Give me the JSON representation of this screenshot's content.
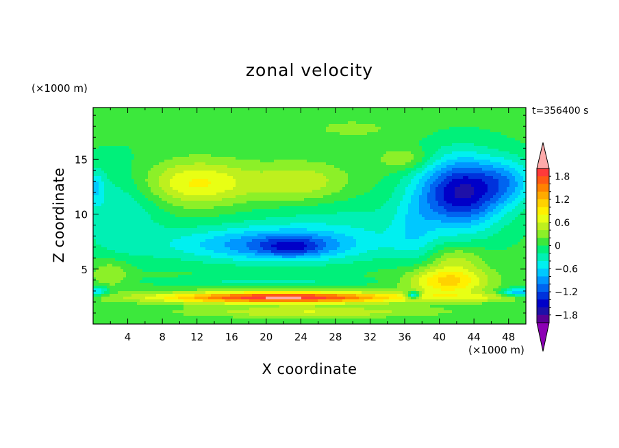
{
  "chart_data": {
    "type": "heatmap",
    "title": "zonal velocity",
    "xlabel": "X coordinate",
    "ylabel": "Z coordinate",
    "x_unit": "(×1000 m)",
    "z_unit": "(×1000 m)",
    "time_label": "t=356400 s",
    "xlim": [
      0,
      50
    ],
    "ylim": [
      0,
      19.7
    ],
    "x_ticks": [
      "4",
      "8",
      "12",
      "16",
      "20",
      "24",
      "28",
      "32",
      "36",
      "40",
      "44",
      "48"
    ],
    "y_ticks": [
      "5",
      "10",
      "15"
    ],
    "colorbar": {
      "labels": [
        "1.8",
        "1.2",
        "0.6",
        "0",
        "−0.6",
        "−1.2",
        "−1.8"
      ],
      "label_values": [
        1.8,
        1.2,
        0.6,
        0,
        -0.6,
        -1.2,
        -1.8
      ],
      "levels": [
        2.0,
        1.8,
        1.6,
        1.4,
        1.2,
        1.0,
        0.8,
        0.6,
        0.4,
        0.2,
        0,
        -0.2,
        -0.4,
        -0.6,
        -0.8,
        -1.0,
        -1.2,
        -1.4,
        -1.6,
        -1.8,
        -2.0
      ],
      "colors": [
        "#ff3a3a",
        "#ff5a14",
        "#ff8200",
        "#ffaa00",
        "#ffd200",
        "#fff000",
        "#e8ff14",
        "#bef01e",
        "#8cf028",
        "#3ce83c",
        "#00f07a",
        "#00f0b4",
        "#00f0f0",
        "#00c8ff",
        "#0096ff",
        "#0064f0",
        "#0032dc",
        "#0000c8",
        "#1e10a8",
        "#5a0096"
      ],
      "over_color": "#ffaaaa",
      "under_color": "#8c00b4"
    },
    "field_base": 0.05,
    "field_features": [
      {
        "x": 12,
        "z": 12.8,
        "sx": 6.5,
        "sz": 2.0,
        "amp": 0.8
      },
      {
        "x": 24,
        "z": 12.8,
        "sx": 5.5,
        "sz": 1.8,
        "amp": 0.55
      },
      {
        "x": 36,
        "z": 15.0,
        "sx": 3.0,
        "sz": 1.0,
        "amp": 0.4
      },
      {
        "x": 42.5,
        "z": 12.0,
        "sx": 5.0,
        "sz": 3.2,
        "amp": -1.65
      },
      {
        "x": 48,
        "z": 13.0,
        "sx": 3.5,
        "sz": 2.0,
        "amp": -0.6
      },
      {
        "x": 37,
        "z": 8.5,
        "sx": 2.5,
        "sz": 3.0,
        "amp": -0.35
      },
      {
        "x": 20,
        "z": 7.2,
        "sx": 12.0,
        "sz": 1.6,
        "amp": -0.9
      },
      {
        "x": 23,
        "z": 7.0,
        "sx": 4.0,
        "sz": 0.9,
        "amp": -0.6
      },
      {
        "x": 3,
        "z": 10.5,
        "sx": 5.0,
        "sz": 4.0,
        "amp": -0.45
      },
      {
        "x": 28,
        "z": 9.0,
        "sx": 12.0,
        "sz": 3.0,
        "amp": -0.3
      },
      {
        "x": 30,
        "z": 17.8,
        "sx": 6.0,
        "sz": 1.0,
        "amp": 0.2
      },
      {
        "x": 41,
        "z": 3.9,
        "sx": 4.5,
        "sz": 1.3,
        "amp": 1.05
      },
      {
        "x": 42,
        "z": 6.0,
        "sx": 3.0,
        "sz": 1.2,
        "amp": 0.4
      },
      {
        "x": 22,
        "z": 2.4,
        "sx": 14.0,
        "sz": 0.5,
        "amp": 2.0
      },
      {
        "x": 45,
        "z": 2.4,
        "sx": 4.5,
        "sz": 0.4,
        "amp": 0.35
      },
      {
        "x": 25,
        "z": 1.1,
        "sx": 14.0,
        "sz": 0.5,
        "amp": 0.55
      },
      {
        "x": 2,
        "z": 4.6,
        "sx": 2.2,
        "sz": 1.2,
        "amp": 0.4
      },
      {
        "x": 20,
        "z": 3.9,
        "sx": 11.0,
        "sz": 0.35,
        "amp": -0.3
      },
      {
        "x": 37,
        "z": 2.6,
        "sx": 0.8,
        "sz": 0.35,
        "amp": -1.2
      },
      {
        "x": 49,
        "z": 2.9,
        "sx": 1.8,
        "sz": 0.35,
        "amp": -0.9
      },
      {
        "x": 0.5,
        "z": 3.0,
        "sx": 1.2,
        "sz": 0.4,
        "amp": -0.7
      },
      {
        "x": 0.3,
        "z": 12.5,
        "sx": 1.0,
        "sz": 1.5,
        "amp": -0.5
      }
    ]
  }
}
